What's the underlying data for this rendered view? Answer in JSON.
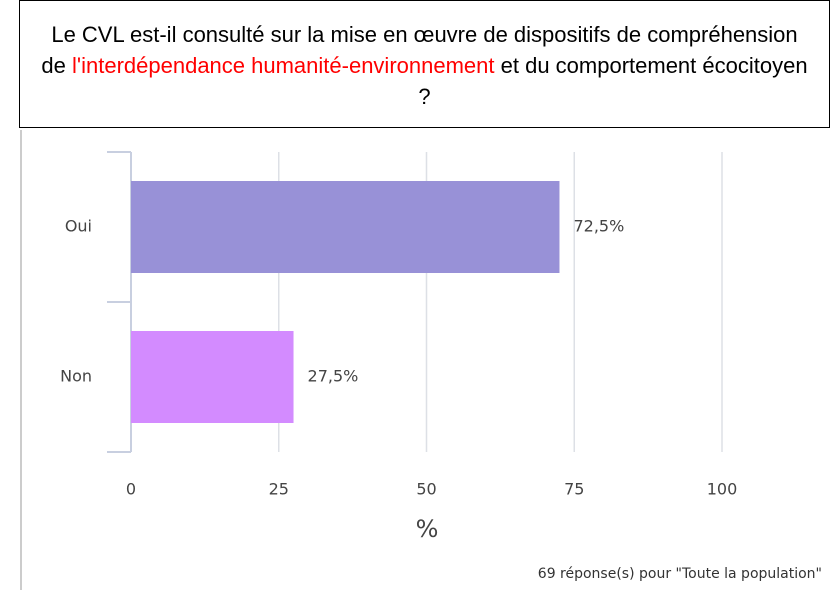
{
  "chart_data": {
    "type": "hbar",
    "title_segments": [
      {
        "text": "Le CVL est-il consulté sur la mise en œuvre de dispositifs de compréhension de",
        "color": "#000000"
      },
      {
        "text": "l'interdépendance humanité-environnement",
        "color": "#ff0000"
      },
      {
        "text": "et du comportement écocitoyen ?",
        "color": "#000000"
      }
    ],
    "categories": [
      "Oui",
      "Non"
    ],
    "values": [
      72.5,
      27.5
    ],
    "value_labels": [
      "72,5%",
      "27,5%"
    ],
    "colors": [
      "#9891d7",
      "#d38bff"
    ],
    "xlim": [
      0,
      100
    ],
    "xticks": [
      0,
      25,
      50,
      75,
      100
    ],
    "xlabel": "%",
    "grid": true,
    "footnote": "69 réponse(s) pour \"Toute la population\""
  }
}
